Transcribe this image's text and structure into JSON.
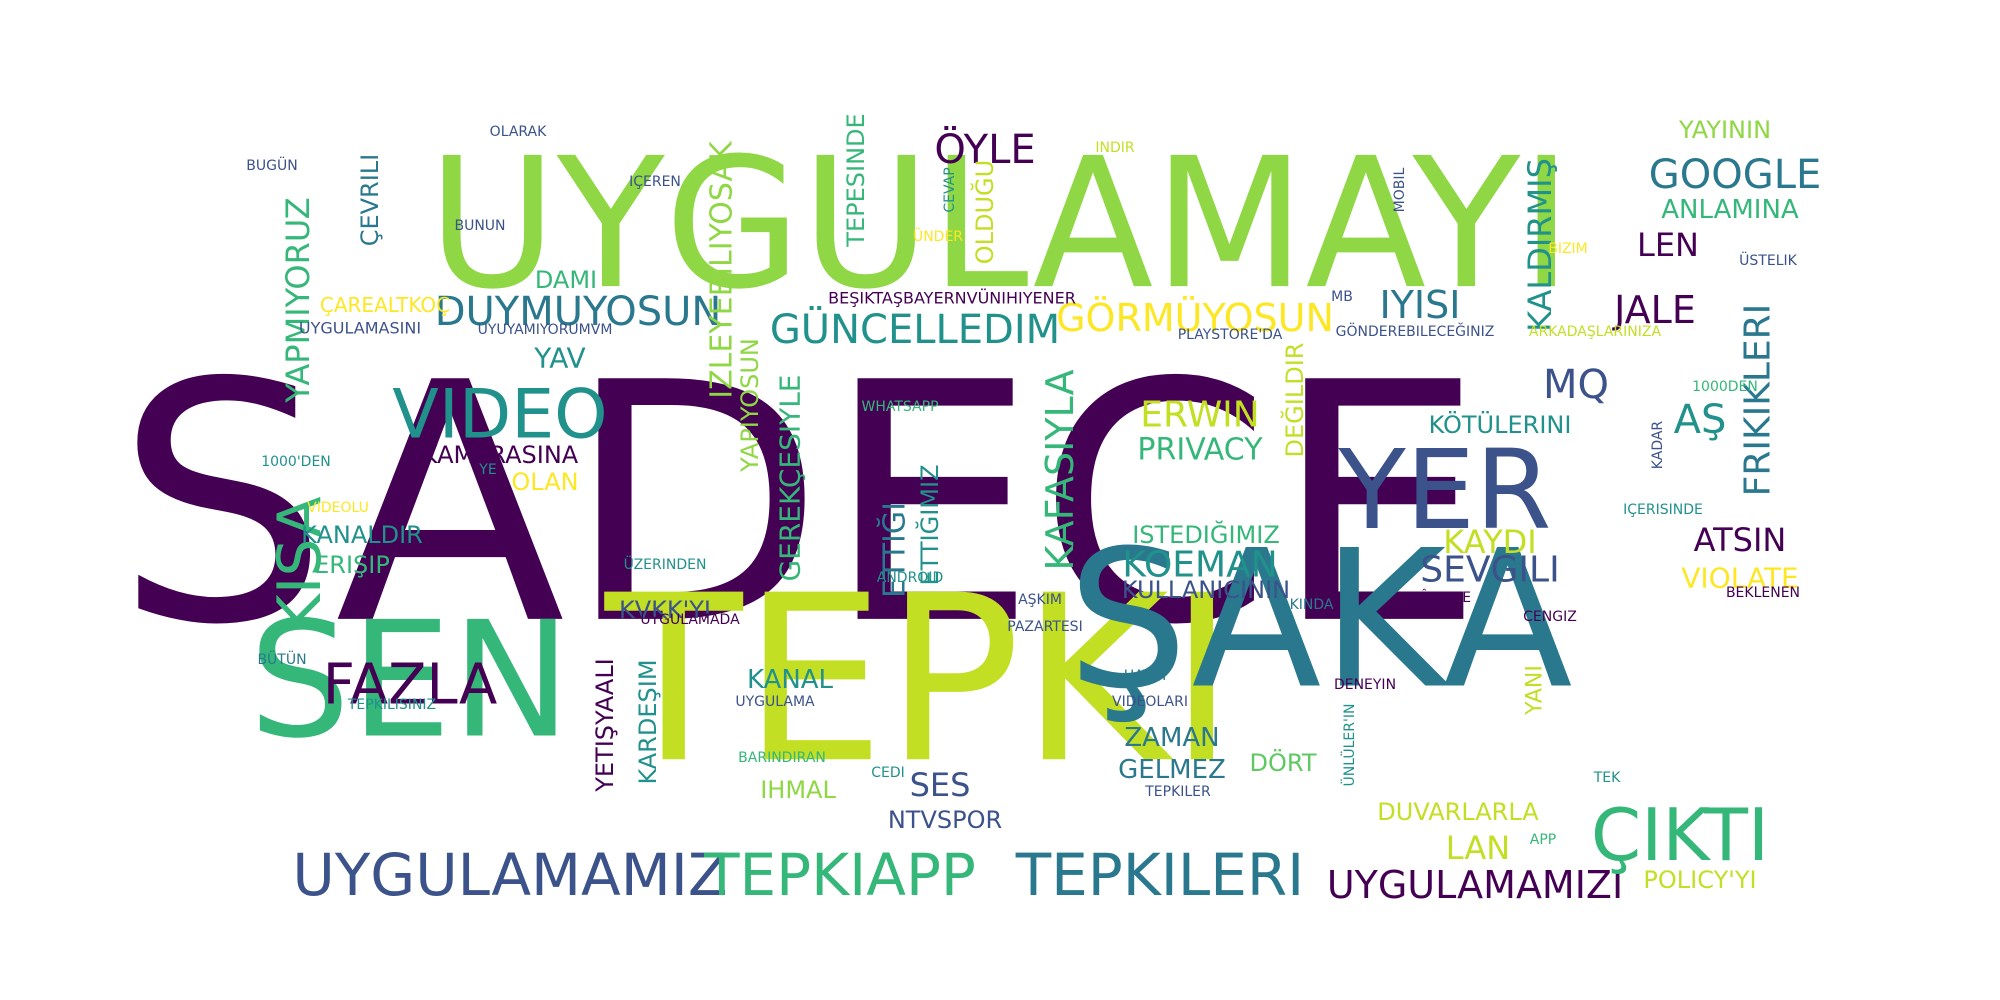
{
  "palette": {
    "dark_purple": "#440154",
    "indigo": "#3b528b",
    "teal": "#21918c",
    "green": "#5ec962",
    "lime": "#8fd744",
    "yellow": "#fde725",
    "yellow_green": "#c2df23",
    "sea_green": "#2a788e",
    "mint": "#35b779"
  },
  "words": [
    "SADECE",
    "UYGULAMAYI",
    "TEPKI",
    "ŞAKA",
    "SEN",
    "YER",
    "UYGULAMAMIZ",
    "TEPKIAPP",
    "TEPKILERI",
    "UYGULAMAMIZI",
    "ÇIKTI",
    "FAZLA",
    "VIDEO",
    "KISA",
    "GOOGLE",
    "JALE",
    "IYISI",
    "DUYMUYOSUN",
    "GÜNCELLEDIM",
    "GÖRMÜYOSUN",
    "ÖYLE",
    "YAYININ",
    "ANLAMINA",
    "LEN",
    "KALDIRMIŞ",
    "FRIKIKLERI",
    "ATSIN",
    "VIOLATE",
    "SEVGILI",
    "KAYDI",
    "KOEMAN",
    "ISTEDIĞIMIZ",
    "KULLANICININ",
    "ERWIN",
    "PRIVACY",
    "DEĞILDIR",
    "KAFASIYLA",
    "ETTIĞI",
    "ETTIĞIMIZ",
    "GEREKÇESIYLE",
    "YAPIYOSUN",
    "IZLEYEBILIYOSAK",
    "TEPESINDE",
    "OLDUĞU",
    "YAPMIYORUZ",
    "ÇEVRILI",
    "KAMERASINA",
    "OLAN",
    "YAV",
    "DAMI",
    "KANALDIR",
    "ERIŞIP",
    "KVKK'YI",
    "YETIŞYAALI",
    "KARDEŞIM",
    "KANAL",
    "IHMAL",
    "SES",
    "NTVSPOR",
    "ZAMAN",
    "GELMEZ",
    "DÖRT",
    "DUVARLARLA",
    "LAN",
    "POLICY'YI",
    "YANI",
    "AŞ",
    "MQ",
    "KÖTÜLERINI",
    "ÇAREALTKOÇ",
    "UYGULAMASINI",
    "UYUYAMIYORUMVM",
    "BEŞIKTAŞBAYERNVÜNIHIYENER",
    "PLAYSTORE'DA",
    "GÖNDEREBILECEĞINIZ",
    "ARKADAŞLARINIZA",
    "BUGÜN",
    "OLARAK",
    "IÇEREN",
    "BUNUN",
    "INDIR",
    "CEVAP",
    "ÜNDER",
    "MOBIL",
    "BIZIM",
    "ÜSTELIK",
    "1000DEN",
    "1000'DEN",
    "YE",
    "VIDEOLU",
    "WHATSAPP",
    "ÜZERINDEN",
    "ANDROID",
    "AŞKIM",
    "PAZARTESI",
    "UYGULAMADA",
    "YAKINDA",
    "HÂLINDE",
    "CENGIZ",
    "BEKLENEN",
    "IÇERISINDE",
    "KADAR",
    "HAYDI",
    "VIDEOLARI",
    "DENEYIN",
    "ÜNLÜLER'IN",
    "BÜTÜN",
    "TEPKILISINIZ",
    "UYGULAMA",
    "BARINDIRAN",
    "CEDI",
    "TEPKILER",
    "TEK",
    "APP",
    "MB"
  ]
}
